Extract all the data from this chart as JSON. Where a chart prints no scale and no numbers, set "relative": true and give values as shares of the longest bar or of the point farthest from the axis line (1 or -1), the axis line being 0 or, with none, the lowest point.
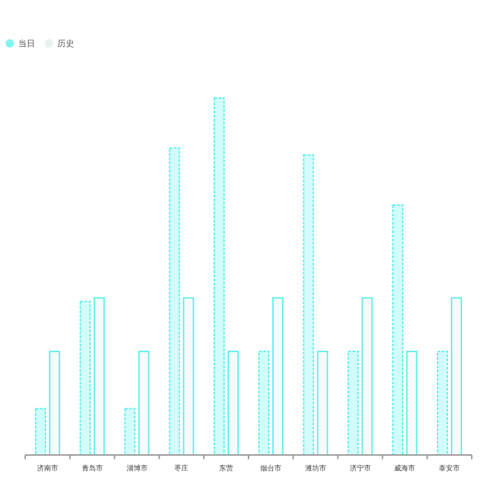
{
  "chart_data": {
    "type": "bar",
    "relative": true,
    "legend": "top left",
    "categories": [
      "济南市",
      "青岛市",
      "淄博市",
      "枣庄",
      "东营",
      "烟台市",
      "潍坊市",
      "济宁市",
      "威海市",
      "泰安市"
    ],
    "series": [
      {
        "name": "当日",
        "color": "#7ff5f0",
        "line_style": "dashed",
        "values": [
          0.13,
          0.43,
          0.13,
          0.86,
          1,
          0.29,
          0.84,
          0.29,
          0.7,
          0.29
        ]
      },
      {
        "name": "历史",
        "color": "#e8f0f0",
        "line_style": "solid",
        "values": [
          0.29,
          0.44,
          0.29,
          0.44,
          0.29,
          0.44,
          0.29,
          0.44,
          0.29,
          0.44
        ]
      }
    ]
  }
}
